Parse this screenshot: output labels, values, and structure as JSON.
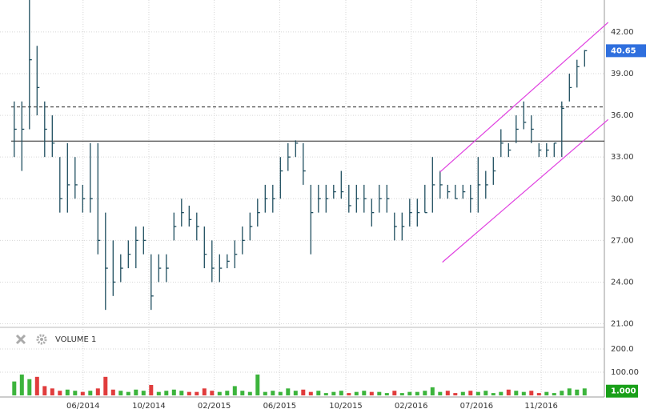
{
  "chart_data": [
    {
      "type": "hlc",
      "high": [
        37,
        37,
        44.3,
        41,
        37,
        36,
        33,
        34,
        33,
        31,
        34,
        34,
        29,
        27,
        26,
        27,
        28,
        28,
        26,
        26,
        26,
        29,
        30,
        29.5,
        29,
        28,
        27,
        26,
        26,
        27,
        28,
        29,
        30,
        31,
        31,
        33,
        34,
        34.2,
        34,
        31,
        31,
        31,
        31,
        32,
        31,
        31,
        31,
        30,
        31,
        31,
        29,
        29,
        30,
        30,
        31,
        33,
        32,
        31,
        31,
        31,
        31,
        33,
        32,
        33,
        35,
        34,
        36,
        37,
        36,
        34,
        34,
        34,
        37,
        39,
        40,
        40.7
      ],
      "low": [
        33,
        32,
        35,
        36,
        33,
        33,
        29,
        29,
        30,
        29,
        29,
        26,
        22,
        23,
        24,
        25,
        25,
        26,
        22,
        24,
        24,
        27,
        28,
        28,
        27,
        25,
        24,
        24,
        25,
        25,
        26,
        27,
        28,
        29,
        29,
        30,
        32,
        33,
        31,
        26,
        29,
        29,
        30,
        30,
        29,
        29,
        29,
        28,
        29,
        29,
        27,
        27,
        28,
        28,
        29,
        29,
        30,
        30,
        30,
        30,
        29,
        29,
        30,
        31,
        33,
        33,
        34,
        35,
        34,
        33,
        33,
        33,
        33,
        37,
        38,
        39.5
      ],
      "close": [
        35,
        35,
        40,
        38,
        35,
        34,
        30,
        31,
        31,
        30,
        30,
        27,
        25,
        24,
        25,
        26,
        27,
        27,
        23,
        25,
        25,
        28,
        29,
        28.5,
        28,
        26,
        25,
        25,
        25.5,
        26,
        27,
        28,
        29,
        30,
        30,
        32,
        33,
        34,
        32,
        29,
        30,
        30,
        30.5,
        30.5,
        29.5,
        30,
        30,
        29,
        30,
        30,
        28,
        28,
        29,
        29,
        29,
        31,
        31,
        30.5,
        30,
        30.5,
        30,
        31,
        31,
        32,
        34,
        33.5,
        35,
        35.5,
        35,
        33.5,
        33.5,
        34,
        36.5,
        38,
        39.5,
        40.65
      ],
      "color": "#1f4e5f",
      "xlim": [
        -0.4,
        77.6
      ],
      "ylim": [
        20.8,
        44.3
      ],
      "yticks": [
        {
          "value": 21,
          "label": "21.00"
        },
        {
          "value": 24,
          "label": "24.00"
        },
        {
          "value": 27,
          "label": "27.00"
        },
        {
          "value": 30,
          "label": "30.00"
        },
        {
          "value": 33,
          "label": "33.00"
        },
        {
          "value": 36,
          "label": "36.00"
        },
        {
          "value": 39,
          "label": "39.00"
        },
        {
          "value": 42,
          "label": "42.00"
        }
      ],
      "xticks": [
        {
          "value": 9.05,
          "label": "06/2014"
        },
        {
          "value": 17.7,
          "label": "10/2014"
        },
        {
          "value": 26.3,
          "label": "02/2015"
        },
        {
          "value": 34.9,
          "label": "06/2015"
        },
        {
          "value": 43.6,
          "label": "10/2015"
        },
        {
          "value": 52.2,
          "label": "02/2016"
        },
        {
          "value": 60.8,
          "label": "07/2016"
        },
        {
          "value": 69.3,
          "label": "11/2016"
        }
      ],
      "hlines": [
        {
          "value": 36.6,
          "style": "dashed"
        },
        {
          "value": 34.15,
          "style": "solid"
        }
      ],
      "trendlines": [
        {
          "x": [
            56,
            78.1
          ],
          "y": [
            31.93,
            42.69
          ]
        },
        {
          "x": [
            56.3,
            78.1
          ],
          "y": [
            25.43,
            35.7
          ]
        }
      ],
      "trendline_color": "#e040e0",
      "last_price": 40.65,
      "last_price_color": "#2f6fde",
      "grid": true
    },
    {
      "type": "volume",
      "title": "VOLUME 1",
      "values": [
        60,
        90,
        70,
        80,
        40,
        30,
        20,
        25,
        20,
        15,
        20,
        30,
        80,
        25,
        20,
        15,
        25,
        20,
        45,
        15,
        20,
        25,
        20,
        15,
        15,
        30,
        20,
        15,
        20,
        40,
        20,
        15,
        90,
        15,
        20,
        15,
        30,
        20,
        25,
        15,
        20,
        10,
        15,
        20,
        10,
        15,
        20,
        15,
        15,
        10,
        20,
        10,
        15,
        15,
        20,
        35,
        15,
        20,
        10,
        15,
        20,
        15,
        20,
        10,
        15,
        25,
        20,
        15,
        20,
        10,
        15,
        10,
        20,
        30,
        25,
        30
      ],
      "up_color": "#3cb43c",
      "down_color": "#e03c3c",
      "ylim": [
        -6.9,
        283
      ],
      "yticks": [
        {
          "value": 100,
          "label": "100.00"
        },
        {
          "value": 200,
          "label": "200.0"
        }
      ],
      "marker": {
        "value": 1,
        "label": "1.000"
      },
      "marker_color": "#19a019"
    }
  ]
}
